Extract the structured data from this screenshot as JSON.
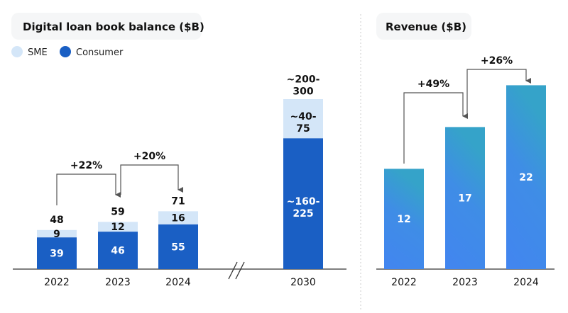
{
  "chart_data": [
    {
      "type": "bar",
      "stacked": true,
      "title": "Digital loan book balance ($B)",
      "legend": {
        "placement": "top-left",
        "entries": [
          "SME",
          "Consumer"
        ]
      },
      "categories": [
        "2022",
        "2023",
        "2024",
        "2030"
      ],
      "axis_break_before": "2030",
      "series": [
        {
          "name": "Consumer",
          "values": [
            39,
            46,
            55,
            192.5
          ],
          "labels": [
            "39",
            "46",
            "55",
            "~160-\n225"
          ],
          "color": "#1a5fc4"
        },
        {
          "name": "SME",
          "values": [
            9,
            12,
            16,
            57.5
          ],
          "labels": [
            "9",
            "12",
            "16",
            "~40-\n75"
          ],
          "color": "#d4e6f8"
        }
      ],
      "totals": [
        "48",
        "59",
        "71",
        "~200-\n300"
      ],
      "growth_annotations": [
        {
          "from": "2022",
          "to": "2023",
          "label": "+22%"
        },
        {
          "from": "2023",
          "to": "2024",
          "label": "+20%"
        }
      ],
      "grid": false
    },
    {
      "type": "bar",
      "title": "Revenue ($B)",
      "categories": [
        "2022",
        "2023",
        "2024"
      ],
      "values": [
        12,
        17,
        22
      ],
      "labels": [
        "12",
        "17",
        "22"
      ],
      "color_top": "#35a3c9",
      "color_bottom": "#4285f0",
      "growth_annotations": [
        {
          "from": "2022",
          "to": "2023",
          "label": "+49%"
        },
        {
          "from": "2023",
          "to": "2024",
          "label": "+26%"
        }
      ],
      "grid": false
    }
  ]
}
